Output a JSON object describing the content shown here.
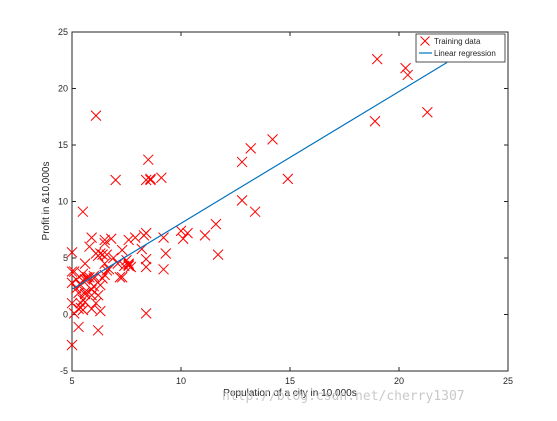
{
  "chart_data": {
    "type": "scatter",
    "title": "",
    "xlabel": "Population of a city in 10,000s",
    "ylabel": "Profit in &10,000s",
    "xlim": [
      5,
      25
    ],
    "ylim": [
      -5,
      25
    ],
    "xticks": [
      5,
      10,
      15,
      20,
      25
    ],
    "yticks": [
      -5,
      0,
      5,
      10,
      15,
      20,
      25
    ],
    "grid": false,
    "legend_position": "top-right",
    "series": [
      {
        "name": "Training data",
        "kind": "scatter",
        "marker": "x",
        "color": "#ff0000",
        "points": [
          [
            6.1,
            17.6
          ],
          [
            5.5,
            9.1
          ],
          [
            8.5,
            13.7
          ],
          [
            7.0,
            11.9
          ],
          [
            5.9,
            6.8
          ],
          [
            8.4,
            11.9
          ],
          [
            5.8,
            3.3
          ],
          [
            8.6,
            11.9
          ],
          [
            6.5,
            6.6
          ],
          [
            5.1,
            3.8
          ],
          [
            5.7,
            3.3
          ],
          [
            14.2,
            15.5
          ],
          [
            5.7,
            3.1
          ],
          [
            5.2,
            3.1
          ],
          [
            7.4,
            4.3
          ],
          [
            7.6,
            6.6
          ],
          [
            5.4,
            0.6
          ],
          [
            6.4,
            5.3
          ],
          [
            5.6,
            3.1
          ],
          [
            5.8,
            6.0
          ],
          [
            7.6,
            4.5
          ],
          [
            6.0,
            3.4
          ],
          [
            5.0,
            2.8
          ],
          [
            5.5,
            3.0
          ],
          [
            5.0,
            3.8
          ],
          [
            13.2,
            14.7
          ],
          [
            5.1,
            0.1
          ],
          [
            6.9,
            5.0
          ],
          [
            5.6,
            1.8
          ],
          [
            6.6,
            5.3
          ],
          [
            11.7,
            5.3
          ],
          [
            5.0,
            1.0
          ],
          [
            5.5,
            0.4
          ],
          [
            8.3,
            7.0
          ],
          [
            6.7,
            4.0
          ],
          [
            7.6,
            4.3
          ],
          [
            6.5,
            6.3
          ],
          [
            5.5,
            1.3
          ],
          [
            12.8,
            13.5
          ],
          [
            5.4,
            1.0
          ],
          [
            20.3,
            21.8
          ],
          [
            18.9,
            17.1
          ],
          [
            7.5,
            4.8
          ],
          [
            6.3,
            5.4
          ],
          [
            10.1,
            6.7
          ],
          [
            7.1,
            4.5
          ],
          [
            9.2,
            6.8
          ],
          [
            8.6,
            12.0
          ],
          [
            6.5,
            4.5
          ],
          [
            10.3,
            7.2
          ],
          [
            5.0,
            5.5
          ],
          [
            13.4,
            9.1
          ],
          [
            5.6,
            4.5
          ],
          [
            9.3,
            5.4
          ],
          [
            8.4,
            7.2
          ],
          [
            6.1,
            1.0
          ],
          [
            5.0,
            -2.7
          ],
          [
            6.4,
            3.2
          ],
          [
            5.3,
            1.9
          ],
          [
            9.2,
            4.0
          ],
          [
            7.6,
            4.4
          ],
          [
            6.2,
            1.7
          ],
          [
            7.3,
            3.3
          ],
          [
            6.2,
            -1.4
          ],
          [
            7.2,
            3.3
          ],
          [
            8.4,
            0.1
          ],
          [
            5.9,
            1.7
          ],
          [
            5.3,
            -1.1
          ],
          [
            8.4,
            4.2
          ],
          [
            6.6,
            3.9
          ],
          [
            10.0,
            7.4
          ],
          [
            11.6,
            8.0
          ],
          [
            6.0,
            3.2
          ],
          [
            6.5,
            3.5
          ],
          [
            19.0,
            22.6
          ],
          [
            20.4,
            21.2
          ],
          [
            21.3,
            17.9
          ],
          [
            12.8,
            10.1
          ],
          [
            6.0,
            2.5
          ],
          [
            8.2,
            5.8
          ],
          [
            7.3,
            5.7
          ],
          [
            6.3,
            2.6
          ],
          [
            5.6,
            2.0
          ],
          [
            5.9,
            2.2
          ],
          [
            14.9,
            12.0
          ],
          [
            9.1,
            12.1
          ],
          [
            6.8,
            6.7
          ],
          [
            5.3,
            0.5
          ],
          [
            5.6,
            1.1
          ],
          [
            5.9,
            0.5
          ],
          [
            8.4,
            4.9
          ],
          [
            6.3,
            0.3
          ],
          [
            7.9,
            6.8
          ],
          [
            5.2,
            2.3
          ],
          [
            6.2,
            5.2
          ],
          [
            11.1,
            7.0
          ],
          [
            7.7,
            4.2
          ],
          [
            5.4,
            2.6
          ],
          [
            5.5,
            3.6
          ],
          [
            6.1,
            5.4
          ]
        ]
      },
      {
        "name": "Linear regression",
        "kind": "line",
        "color": "#0072bd",
        "points": [
          [
            5.03,
            2.27
          ],
          [
            22.2,
            22.3
          ]
        ]
      }
    ]
  },
  "watermark": "http://blog.csdn.net/cherry1307"
}
